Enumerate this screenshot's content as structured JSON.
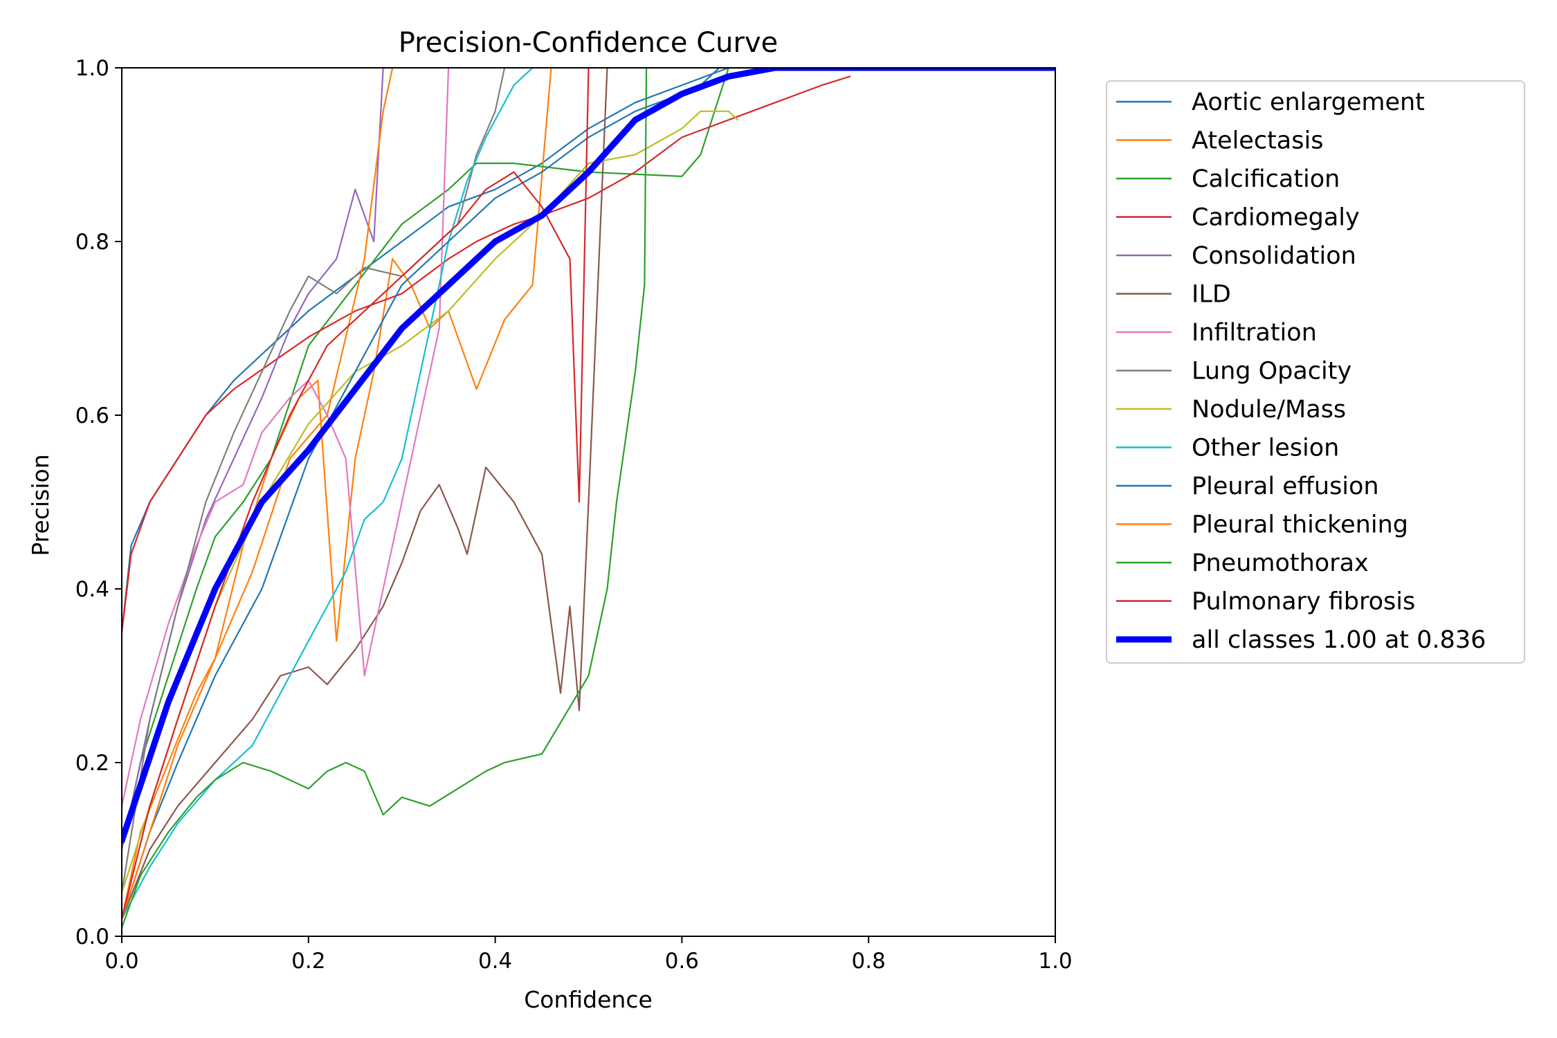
{
  "chart_data": {
    "type": "line",
    "title": "Precision-Confidence Curve",
    "xlabel": "Confidence",
    "ylabel": "Precision",
    "xlim": [
      0,
      1
    ],
    "ylim": [
      0,
      1
    ],
    "xticks": [
      "0.0",
      "0.2",
      "0.4",
      "0.6",
      "0.8",
      "1.0"
    ],
    "yticks": [
      "0.0",
      "0.2",
      "0.4",
      "0.6",
      "0.8",
      "1.0"
    ],
    "grid": false,
    "legend_position": "outside-right-top",
    "series": [
      {
        "name": "Aortic enlargement",
        "color": "#1f77b4",
        "x": [
          0,
          0.01,
          0.03,
          0.06,
          0.09,
          0.12,
          0.15,
          0.2,
          0.25,
          0.3,
          0.35,
          0.4,
          0.45,
          0.5,
          0.55,
          0.6,
          0.65,
          0.7,
          1.0
        ],
        "y": [
          0.35,
          0.45,
          0.5,
          0.55,
          0.6,
          0.64,
          0.67,
          0.72,
          0.76,
          0.8,
          0.84,
          0.86,
          0.89,
          0.93,
          0.96,
          0.98,
          1.0,
          1.0,
          1.0
        ]
      },
      {
        "name": "Atelectasis",
        "color": "#ff7f0e",
        "x": [
          0,
          0.02,
          0.05,
          0.08,
          0.1,
          0.13,
          0.16,
          0.19,
          0.21,
          0.23,
          0.25,
          0.27,
          0.29,
          0.31,
          0.33,
          0.35,
          0.38,
          0.41,
          0.44,
          0.46,
          0.5,
          1.0
        ],
        "y": [
          0.02,
          0.12,
          0.2,
          0.28,
          0.32,
          0.45,
          0.55,
          0.62,
          0.64,
          0.34,
          0.55,
          0.65,
          0.78,
          0.75,
          0.7,
          0.72,
          0.63,
          0.71,
          0.75,
          1.0,
          1.0,
          1.0
        ]
      },
      {
        "name": "Calcification",
        "color": "#2ca02c",
        "x": [
          0,
          0.02,
          0.05,
          0.08,
          0.1,
          0.13,
          0.16,
          0.2,
          0.25,
          0.3,
          0.35,
          0.38,
          0.42,
          0.5,
          0.6,
          0.62,
          0.65,
          1.0
        ],
        "y": [
          0.1,
          0.2,
          0.3,
          0.4,
          0.46,
          0.5,
          0.55,
          0.68,
          0.75,
          0.82,
          0.86,
          0.89,
          0.89,
          0.88,
          0.875,
          0.9,
          1.0,
          1.0
        ]
      },
      {
        "name": "Cardiomegaly",
        "color": "#d62728",
        "x": [
          0,
          0.01,
          0.03,
          0.06,
          0.09,
          0.12,
          0.16,
          0.2,
          0.25,
          0.3,
          0.35,
          0.38,
          0.42,
          0.45,
          0.5,
          0.55,
          0.6,
          0.65,
          0.7,
          0.75,
          0.78
        ],
        "y": [
          0.35,
          0.44,
          0.5,
          0.55,
          0.6,
          0.63,
          0.66,
          0.69,
          0.72,
          0.74,
          0.78,
          0.8,
          0.82,
          0.83,
          0.85,
          0.88,
          0.92,
          0.94,
          0.96,
          0.98,
          0.99
        ]
      },
      {
        "name": "Consolidation",
        "color": "#9467bd",
        "x": [
          0,
          0.03,
          0.06,
          0.09,
          0.12,
          0.15,
          0.18,
          0.2,
          0.23,
          0.25,
          0.27,
          0.28,
          0.29
        ],
        "y": [
          0.1,
          0.25,
          0.38,
          0.48,
          0.55,
          0.62,
          0.7,
          0.74,
          0.78,
          0.86,
          0.8,
          1.0,
          1.0
        ]
      },
      {
        "name": "ILD",
        "color": "#8c564b",
        "x": [
          0,
          0.03,
          0.06,
          0.1,
          0.14,
          0.17,
          0.2,
          0.22,
          0.25,
          0.28,
          0.3,
          0.32,
          0.34,
          0.36,
          0.37,
          0.39,
          0.42,
          0.45,
          0.47,
          0.48,
          0.49,
          0.5,
          0.52
        ],
        "y": [
          0.02,
          0.1,
          0.15,
          0.2,
          0.25,
          0.3,
          0.31,
          0.29,
          0.33,
          0.38,
          0.43,
          0.49,
          0.52,
          0.47,
          0.44,
          0.54,
          0.5,
          0.44,
          0.28,
          0.38,
          0.26,
          0.5,
          1.0
        ]
      },
      {
        "name": "Infiltration",
        "color": "#e377c2",
        "x": [
          0,
          0.02,
          0.05,
          0.08,
          0.1,
          0.13,
          0.15,
          0.18,
          0.2,
          0.22,
          0.24,
          0.26,
          0.28,
          0.3,
          0.32,
          0.34,
          0.35
        ],
        "y": [
          0.15,
          0.25,
          0.36,
          0.45,
          0.5,
          0.52,
          0.58,
          0.62,
          0.64,
          0.6,
          0.55,
          0.3,
          0.4,
          0.5,
          0.6,
          0.7,
          1.0
        ]
      },
      {
        "name": "Lung Opacity",
        "color": "#7f7f7f",
        "x": [
          0,
          0.03,
          0.06,
          0.09,
          0.12,
          0.15,
          0.18,
          0.2,
          0.23,
          0.26,
          0.3,
          0.33,
          0.36,
          0.38,
          0.4,
          0.41
        ],
        "y": [
          0.05,
          0.25,
          0.38,
          0.5,
          0.58,
          0.65,
          0.72,
          0.76,
          0.74,
          0.77,
          0.76,
          0.79,
          0.82,
          0.9,
          0.95,
          1.0
        ]
      },
      {
        "name": "Nodule/Mass",
        "color": "#bcbd22",
        "x": [
          0,
          0.03,
          0.06,
          0.1,
          0.15,
          0.2,
          0.25,
          0.3,
          0.35,
          0.4,
          0.45,
          0.5,
          0.55,
          0.6,
          0.62,
          0.65,
          0.66
        ],
        "y": [
          0.05,
          0.15,
          0.25,
          0.38,
          0.5,
          0.59,
          0.65,
          0.68,
          0.72,
          0.78,
          0.83,
          0.89,
          0.9,
          0.93,
          0.95,
          0.95,
          0.94
        ]
      },
      {
        "name": "Other lesion",
        "color": "#17becf",
        "x": [
          0,
          0.03,
          0.06,
          0.1,
          0.14,
          0.18,
          0.21,
          0.24,
          0.26,
          0.28,
          0.3,
          0.32,
          0.34,
          0.35,
          0.37,
          0.39,
          0.42,
          0.44
        ],
        "y": [
          0.02,
          0.08,
          0.13,
          0.18,
          0.22,
          0.3,
          0.36,
          0.42,
          0.48,
          0.5,
          0.55,
          0.65,
          0.75,
          0.8,
          0.87,
          0.92,
          0.98,
          1.0
        ]
      },
      {
        "name": "Pleural effusion",
        "color": "#1f77b4",
        "x": [
          0,
          0.03,
          0.06,
          0.1,
          0.15,
          0.2,
          0.25,
          0.3,
          0.35,
          0.4,
          0.45,
          0.5,
          0.55,
          0.6,
          0.62,
          0.64
        ],
        "y": [
          0.02,
          0.12,
          0.2,
          0.3,
          0.4,
          0.55,
          0.65,
          0.75,
          0.8,
          0.85,
          0.88,
          0.92,
          0.95,
          0.97,
          0.98,
          1.0
        ]
      },
      {
        "name": "Pleural thickening",
        "color": "#ff7f0e",
        "x": [
          0,
          0.03,
          0.06,
          0.1,
          0.14,
          0.18,
          0.22,
          0.26,
          0.28,
          0.29
        ],
        "y": [
          0.02,
          0.12,
          0.22,
          0.32,
          0.42,
          0.55,
          0.6,
          0.78,
          0.95,
          1.0
        ]
      },
      {
        "name": "Pneumothorax",
        "color": "#2ca02c",
        "x": [
          0,
          0.02,
          0.05,
          0.08,
          0.1,
          0.13,
          0.16,
          0.18,
          0.2,
          0.22,
          0.24,
          0.26,
          0.28,
          0.3,
          0.33,
          0.36,
          0.39,
          0.41,
          0.45,
          0.5,
          0.52,
          0.53,
          0.55,
          0.56,
          0.562
        ],
        "y": [
          0.01,
          0.07,
          0.12,
          0.16,
          0.18,
          0.2,
          0.19,
          0.18,
          0.17,
          0.19,
          0.2,
          0.19,
          0.14,
          0.16,
          0.15,
          0.17,
          0.19,
          0.2,
          0.21,
          0.3,
          0.4,
          0.5,
          0.65,
          0.75,
          1.0
        ]
      },
      {
        "name": "Pulmonary fibrosis",
        "color": "#d62728",
        "x": [
          0,
          0.03,
          0.06,
          0.1,
          0.14,
          0.18,
          0.22,
          0.26,
          0.3,
          0.33,
          0.36,
          0.39,
          0.42,
          0.45,
          0.48,
          0.49,
          0.5
        ],
        "y": [
          0.02,
          0.15,
          0.25,
          0.38,
          0.5,
          0.6,
          0.68,
          0.72,
          0.76,
          0.79,
          0.82,
          0.86,
          0.88,
          0.84,
          0.78,
          0.5,
          1.0
        ]
      },
      {
        "name": "all classes 1.00 at 0.836",
        "color": "#0000ff",
        "x": [
          0,
          0.05,
          0.1,
          0.15,
          0.2,
          0.25,
          0.3,
          0.35,
          0.4,
          0.45,
          0.5,
          0.55,
          0.6,
          0.65,
          0.7,
          0.75,
          0.8,
          1.0
        ],
        "y": [
          0.11,
          0.27,
          0.4,
          0.5,
          0.56,
          0.63,
          0.7,
          0.75,
          0.8,
          0.83,
          0.88,
          0.94,
          0.97,
          0.99,
          1.0,
          1.0,
          1.0,
          1.0
        ]
      }
    ]
  }
}
